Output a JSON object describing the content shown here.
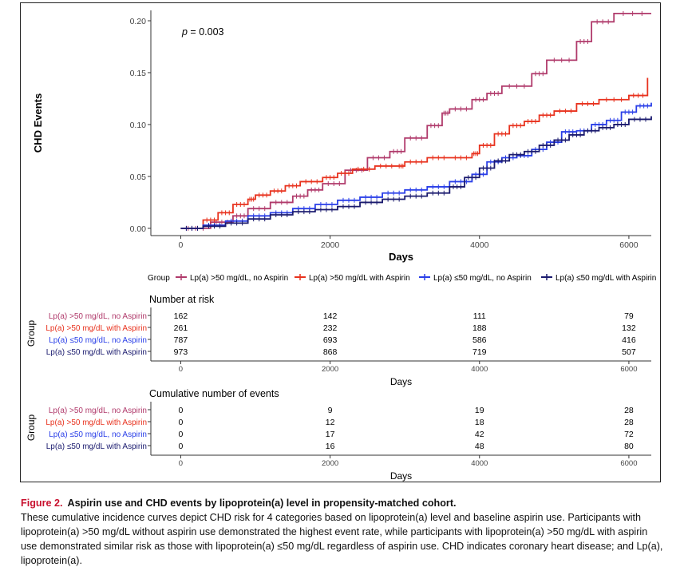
{
  "chart_data": {
    "type": "line",
    "subtype": "step",
    "annotation": "p = 0.003",
    "annotation_p": "p",
    "annotation_rest": " = 0.003",
    "xlabel": "Days",
    "ylabel": "CHD Events",
    "xlim": [
      -400,
      6300
    ],
    "ylim": [
      -0.007,
      0.21
    ],
    "xticks": [
      0,
      2000,
      4000,
      6000
    ],
    "xtick_labels": [
      "0",
      "2000",
      "4000",
      "6000"
    ],
    "yticks": [
      0.0,
      0.05,
      0.1,
      0.15,
      0.2
    ],
    "ytick_labels": [
      "0.00",
      "0.05",
      "0.10",
      "0.15",
      "0.20"
    ],
    "legend_title": "Group",
    "legend_position": "bottom",
    "series": [
      {
        "name": "Lp(a) >50 mg/dL, no Aspirin",
        "color": "#b03a6b",
        "x": [
          0,
          400,
          700,
          900,
          1200,
          1500,
          1700,
          1900,
          2200,
          2500,
          2800,
          3000,
          3300,
          3500,
          3600,
          3900,
          4100,
          4300,
          4700,
          4900,
          5300,
          5500,
          5800,
          6300
        ],
        "y": [
          0.0,
          0.006,
          0.012,
          0.019,
          0.025,
          0.031,
          0.037,
          0.043,
          0.056,
          0.068,
          0.074,
          0.087,
          0.099,
          0.111,
          0.115,
          0.124,
          0.13,
          0.137,
          0.149,
          0.162,
          0.18,
          0.199,
          0.207,
          0.207
        ]
      },
      {
        "name": "Lp(a) >50 mg/dL with Aspirin",
        "color": "#e8321e",
        "x": [
          0,
          300,
          500,
          700,
          900,
          1000,
          1200,
          1400,
          1600,
          1900,
          2100,
          2300,
          2600,
          2900,
          3000,
          3300,
          3600,
          3900,
          4000,
          4200,
          4400,
          4600,
          4800,
          5000,
          5300,
          5600,
          6000,
          6250
        ],
        "y": [
          0.0,
          0.008,
          0.015,
          0.023,
          0.028,
          0.032,
          0.036,
          0.041,
          0.045,
          0.049,
          0.053,
          0.057,
          0.06,
          0.06,
          0.064,
          0.068,
          0.068,
          0.072,
          0.08,
          0.091,
          0.099,
          0.103,
          0.109,
          0.113,
          0.12,
          0.124,
          0.128,
          0.145
        ]
      },
      {
        "name": "Lp(a) ≤50 mg/dL, no Aspirin",
        "color": "#2a3fe8",
        "x": [
          0,
          300,
          600,
          900,
          1200,
          1500,
          1800,
          2100,
          2400,
          2700,
          3000,
          3300,
          3600,
          3900,
          4100,
          4300,
          4500,
          4700,
          4900,
          5100,
          5300,
          5500,
          5700,
          5900,
          6100,
          6300
        ],
        "y": [
          0.0,
          0.003,
          0.007,
          0.012,
          0.015,
          0.019,
          0.023,
          0.027,
          0.03,
          0.034,
          0.037,
          0.04,
          0.045,
          0.052,
          0.064,
          0.068,
          0.07,
          0.076,
          0.083,
          0.093,
          0.094,
          0.1,
          0.104,
          0.112,
          0.118,
          0.121
        ]
      },
      {
        "name": "Lp(a) ≤50 mg/dL with Aspirin",
        "color": "#1a1a6e",
        "x": [
          0,
          300,
          600,
          900,
          1200,
          1500,
          1800,
          2100,
          2400,
          2700,
          3000,
          3300,
          3600,
          3800,
          4000,
          4200,
          4400,
          4600,
          4800,
          5000,
          5200,
          5400,
          5600,
          5800,
          6000,
          6300
        ],
        "y": [
          0.0,
          0.002,
          0.005,
          0.009,
          0.013,
          0.016,
          0.018,
          0.021,
          0.025,
          0.028,
          0.031,
          0.034,
          0.04,
          0.049,
          0.058,
          0.065,
          0.071,
          0.074,
          0.08,
          0.085,
          0.09,
          0.094,
          0.097,
          0.1,
          0.105,
          0.108
        ]
      }
    ]
  },
  "risk_table": {
    "title": "Number at risk",
    "group_label": "Group",
    "xlabel": "Days",
    "rows": [
      {
        "label": "Lp(a) >50 mg/dL, no Aspirin",
        "color": "#b03a6b",
        "values": [
          "162",
          "142",
          "111",
          "79"
        ]
      },
      {
        "label": "Lp(a) >50 mg/dL with Aspirin",
        "color": "#e8321e",
        "values": [
          "261",
          "232",
          "188",
          "132"
        ]
      },
      {
        "label": "Lp(a) ≤50 mg/dL, no Aspirin",
        "color": "#2a3fe8",
        "values": [
          "787",
          "693",
          "586",
          "416"
        ]
      },
      {
        "label": "Lp(a) ≤50 mg/dL with Aspirin",
        "color": "#1a1a6e",
        "values": [
          "973",
          "868",
          "719",
          "507"
        ]
      }
    ]
  },
  "events_table": {
    "title": "Cumulative number of events",
    "group_label": "Group",
    "xlabel": "Days",
    "rows": [
      {
        "label": "Lp(a) >50 mg/dL, no Aspirin",
        "color": "#b03a6b",
        "values": [
          "0",
          "9",
          "19",
          "28"
        ]
      },
      {
        "label": "Lp(a) >50 mg/dL with Aspirin",
        "color": "#e8321e",
        "values": [
          "0",
          "12",
          "18",
          "28"
        ]
      },
      {
        "label": "Lp(a) ≤50 mg/dL, no Aspirin",
        "color": "#2a3fe8",
        "values": [
          "0",
          "17",
          "42",
          "72"
        ]
      },
      {
        "label": "Lp(a) ≤50 mg/dL with Aspirin",
        "color": "#1a1a6e",
        "values": [
          "0",
          "16",
          "48",
          "80"
        ]
      }
    ]
  },
  "caption": {
    "label": "Figure 2.",
    "title": "Aspirin use and CHD events by lipoprotein(a) level in propensity-matched cohort.",
    "body": "These cumulative incidence curves depict CHD risk for 4 categories based on lipoprotein(a) level and baseline aspirin use. Participants with lipoprotein(a) >50 mg/dL without aspirin use demonstrated the highest event rate, while participants with lipoprotein(a) >50 mg/dL with aspirin use demonstrated similar risk as those with lipoprotein(a) ≤50 mg/dL regardless of aspirin use. CHD indicates coronary heart disease; and Lp(a), lipoprotein(a).",
    "label_color": "#c8102e"
  }
}
